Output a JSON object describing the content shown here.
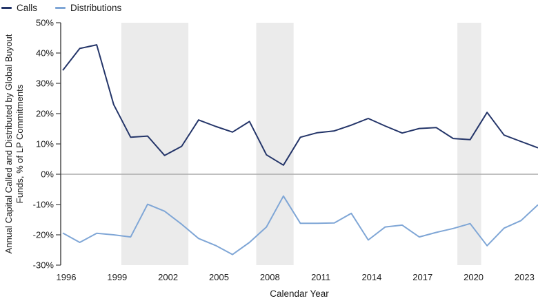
{
  "legend": [
    {
      "label": "Calls",
      "color": "#243569"
    },
    {
      "label": "Distributions",
      "color": "#7fa6d6"
    }
  ],
  "y_axis": {
    "title_line1": "Annual Capital Called and Distributed by Global Buyout",
    "title_line2": "Funds, % of LP Commitments",
    "tick_values": [
      50,
      40,
      30,
      20,
      10,
      0,
      -10,
      -20,
      -30
    ],
    "tick_labels": [
      "50%",
      "40%",
      "30%",
      "20%",
      "10%",
      "0%",
      "-10%",
      "-20%",
      "-30%"
    ]
  },
  "x_axis": {
    "title": "Calendar Year",
    "tick_years": [
      1996,
      1999,
      2002,
      2005,
      2008,
      2011,
      2014,
      2017,
      2020,
      2023
    ]
  },
  "chart_data": {
    "type": "line",
    "x": [
      1996,
      1997,
      1998,
      1999,
      2000,
      2001,
      2002,
      2003,
      2004,
      2005,
      2006,
      2007,
      2008,
      2009,
      2010,
      2011,
      2012,
      2013,
      2014,
      2015,
      2016,
      2017,
      2018,
      2019,
      2020,
      2021,
      2022,
      2023,
      2024
    ],
    "series": [
      {
        "name": "Calls",
        "color": "#243569",
        "values": [
          34.3,
          41.5,
          42.7,
          23.0,
          12.2,
          12.6,
          6.2,
          9.2,
          17.9,
          15.8,
          13.9,
          17.4,
          6.4,
          3.0,
          12.2,
          13.7,
          14.3,
          16.2,
          18.4,
          15.9,
          13.6,
          15.1,
          15.4,
          11.8,
          11.4,
          20.4,
          12.9,
          10.8,
          8.7
        ]
      },
      {
        "name": "Distributions",
        "color": "#7fa6d6",
        "values": [
          -19.4,
          -22.5,
          -19.5,
          -20.0,
          -20.7,
          -9.9,
          -12.2,
          -16.5,
          -21.2,
          -23.5,
          -26.5,
          -22.5,
          -17.4,
          -7.2,
          -16.2,
          -16.2,
          -16.1,
          -12.9,
          -21.7,
          -17.4,
          -16.8,
          -20.7,
          -19.2,
          -17.9,
          -16.3,
          -23.6,
          -17.8,
          -15.3,
          -10.1
        ]
      }
    ],
    "shaded_bands": [
      {
        "from": 1999.45,
        "to": 2003.4
      },
      {
        "from": 2007.4,
        "to": 2009.6
      },
      {
        "from": 2019.25,
        "to": 2020.65
      }
    ],
    "xlim": [
      1996,
      2024
    ],
    "ylim": [
      -30,
      50
    ],
    "zero_line": true,
    "grid": false,
    "legend_position": "top-left",
    "band_color": "#ebebeb",
    "zero_line_color": "#ababab",
    "axis_color": "#3f3f3f"
  }
}
